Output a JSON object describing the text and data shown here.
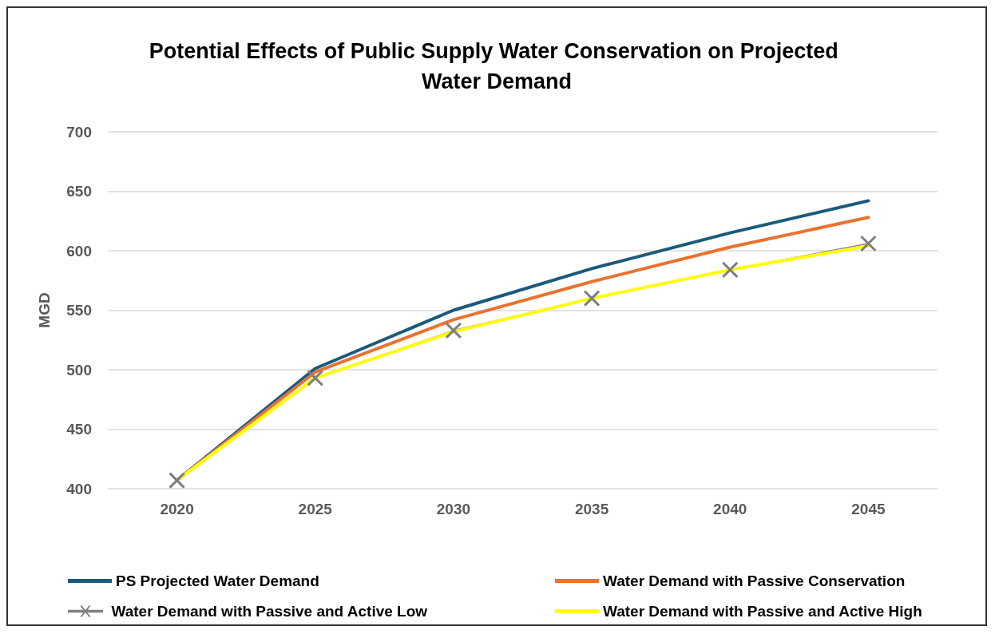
{
  "chart_data": {
    "type": "line",
    "title": "Potential Effects of Public Supply Water Conservation on Projected Water Demand",
    "ylabel": "MGD",
    "categories": [
      "2020",
      "2025",
      "2030",
      "2035",
      "2040",
      "2045"
    ],
    "series": [
      {
        "name": "PS Projected Water Demand",
        "color": "#1a5a7a",
        "values": [
          407,
          501,
          550,
          585,
          615,
          642
        ],
        "marker": "none"
      },
      {
        "name": "Water Demand with Passive Conservation",
        "color": "#e87330",
        "values": [
          407,
          498,
          542,
          574,
          603,
          628
        ],
        "marker": "none"
      },
      {
        "name": "Water Demand with Passive and Active Low",
        "color": "#7f7f7f",
        "values": [
          407,
          493,
          533,
          560,
          584,
          606
        ],
        "marker": "cross"
      },
      {
        "name": "Water Demand with Passive and Active High",
        "color": "#ffff00",
        "values": [
          407,
          493,
          532,
          560,
          584,
          604
        ],
        "marker": "none"
      }
    ],
    "ylim": [
      400,
      700
    ],
    "yticks": [
      400,
      450,
      500,
      550,
      600,
      650,
      700
    ],
    "grid": "y",
    "legend": "bottom",
    "line_style": "solid"
  }
}
